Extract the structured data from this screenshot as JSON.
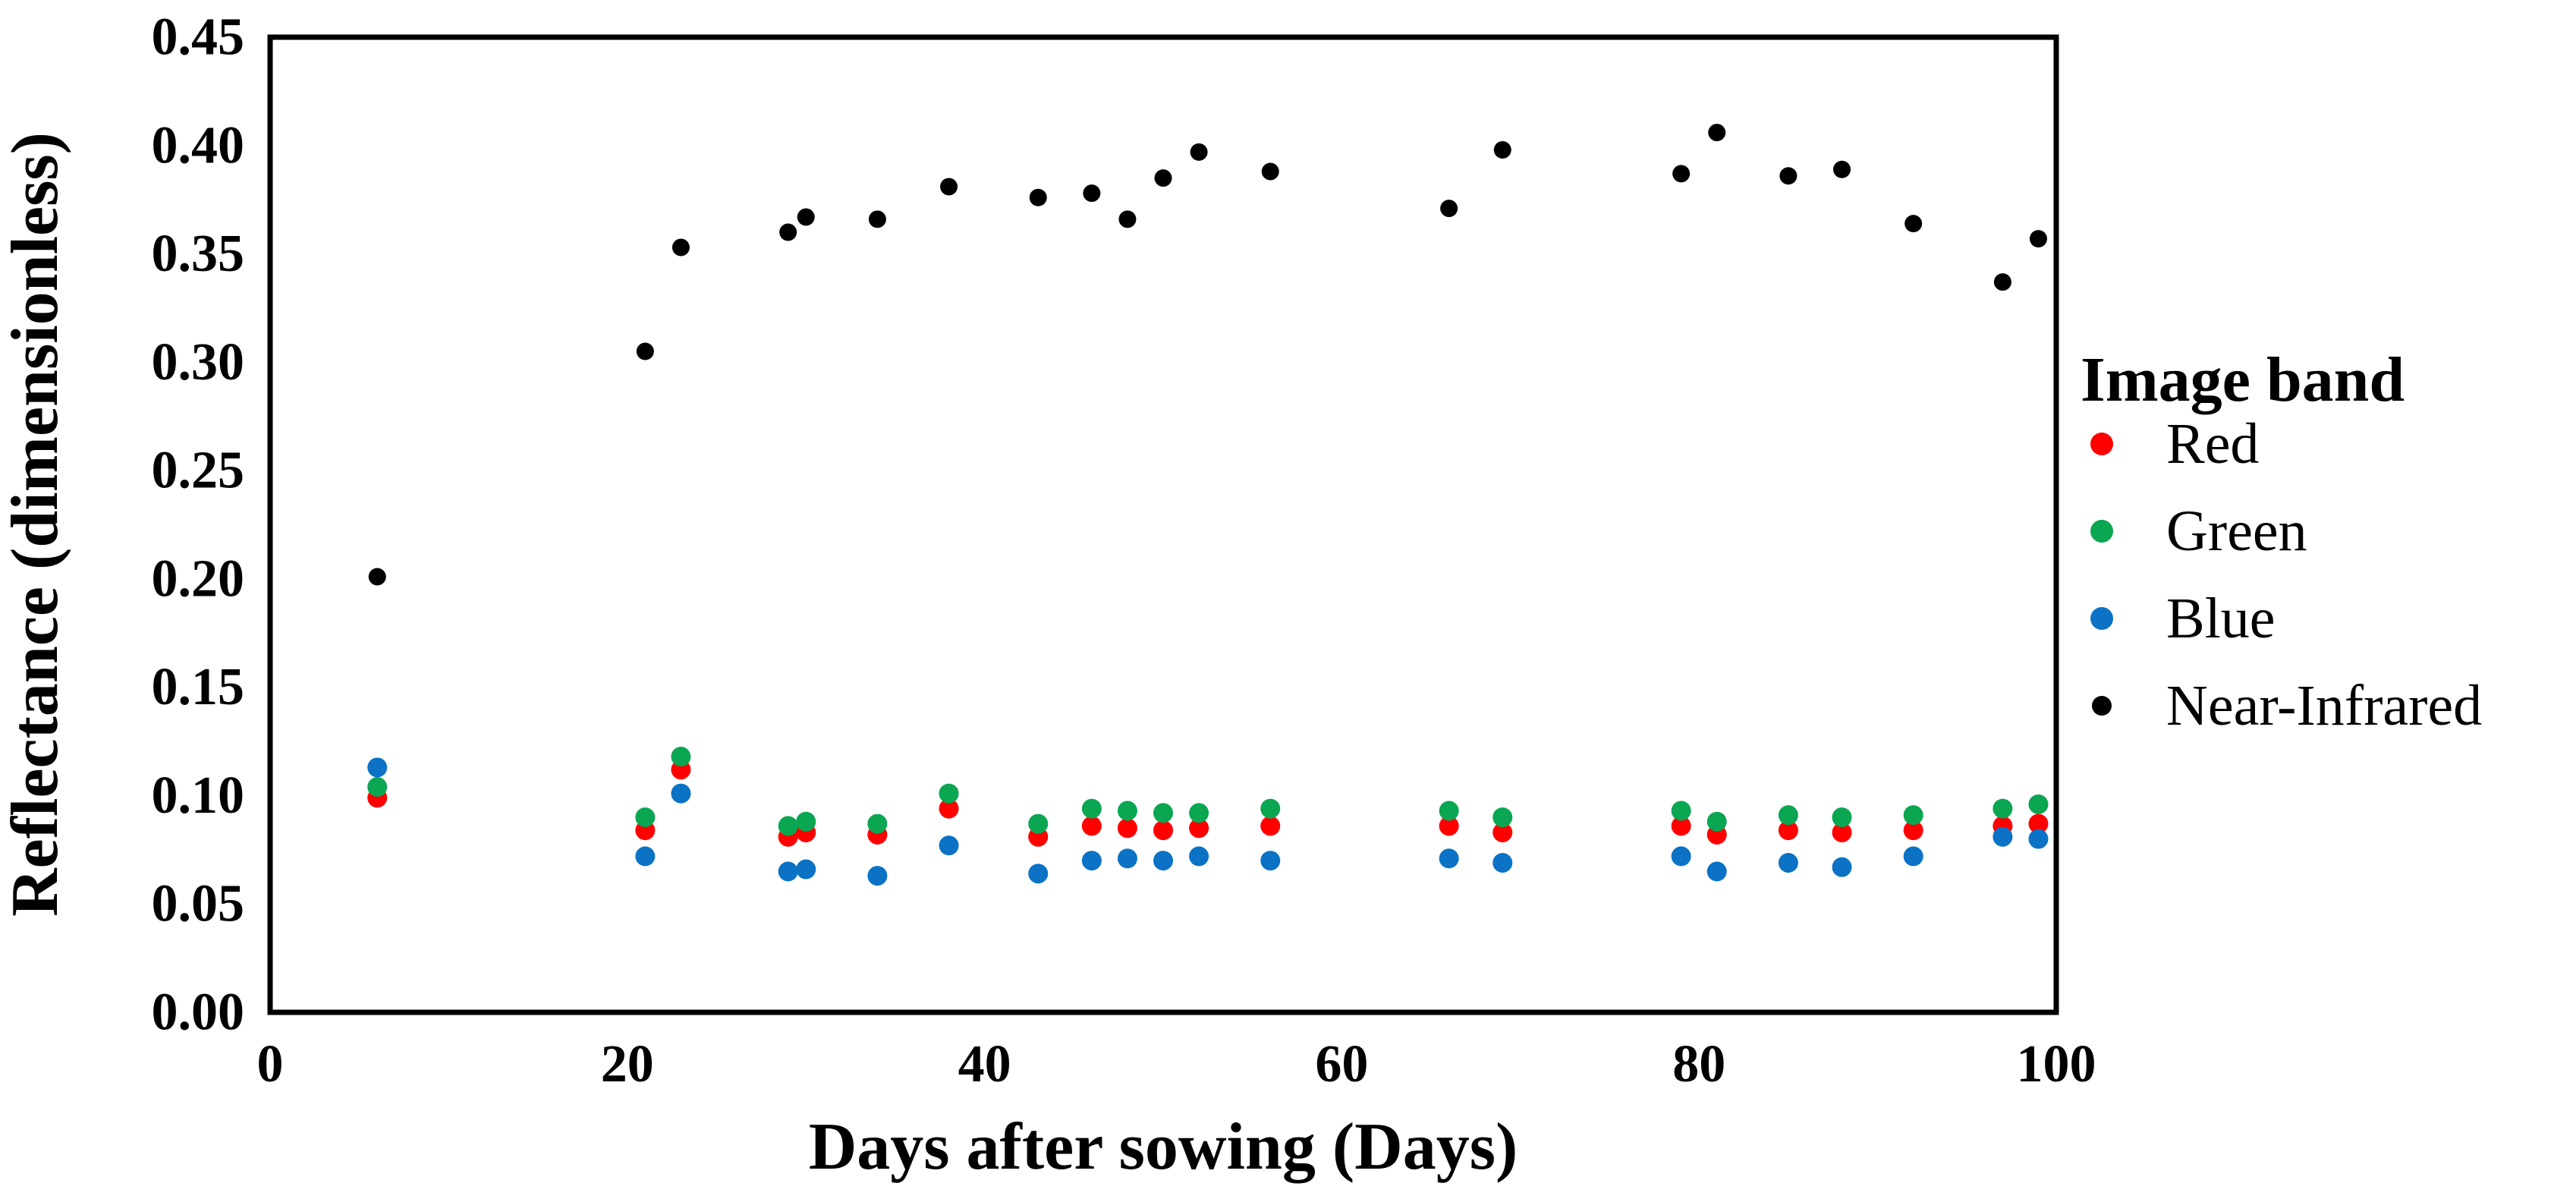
{
  "figure": {
    "background_color": "#ffffff",
    "plot_border_color": "#000000",
    "y_axis": {
      "title": "Reflectance (dimensionless)",
      "tick_labels": [
        "0.45",
        "0.40",
        "0.35",
        "0.30",
        "0.25",
        "0.20",
        "0.15",
        "0.10",
        "0.05",
        "0.00"
      ],
      "tick_values": [
        0.45,
        0.4,
        0.35,
        0.3,
        0.25,
        0.2,
        0.15,
        0.1,
        0.05,
        0.0
      ]
    },
    "x_axis": {
      "title": "Days after sowing (Days)",
      "tick_labels": [
        "0",
        "20",
        "40",
        "60",
        "80",
        "100"
      ],
      "tick_values": [
        0,
        20,
        40,
        60,
        80,
        100
      ]
    },
    "legend": {
      "title": "Image band",
      "items": [
        "Red",
        "Green",
        "Blue",
        "Near-Infrared"
      ]
    }
  },
  "chart_data": {
    "type": "scatter",
    "title": "",
    "xlabel": "Days after sowing (Days)",
    "ylabel": "Reflectance (dimensionless)",
    "xlim": [
      0,
      100
    ],
    "ylim": [
      0.0,
      0.45
    ],
    "grid": false,
    "legend_position": "right",
    "x": [
      6,
      21,
      23,
      29,
      30,
      34,
      38,
      43,
      46,
      48,
      50,
      52,
      56,
      66,
      69,
      79,
      81,
      85,
      88,
      92,
      97,
      99
    ],
    "series": [
      {
        "name": "Red",
        "color": "#fe0000",
        "marker_radius": 13,
        "values": [
          0.099,
          0.084,
          0.112,
          0.081,
          0.083,
          0.082,
          0.094,
          0.081,
          0.086,
          0.085,
          0.084,
          0.085,
          0.086,
          0.086,
          0.083,
          0.086,
          0.082,
          0.084,
          0.083,
          0.084,
          0.086,
          0.087
        ]
      },
      {
        "name": "Green",
        "color": "#0aa651",
        "marker_radius": 13,
        "values": [
          0.104,
          0.09,
          0.118,
          0.086,
          0.088,
          0.087,
          0.101,
          0.087,
          0.094,
          0.093,
          0.092,
          0.092,
          0.094,
          0.093,
          0.09,
          0.093,
          0.088,
          0.091,
          0.09,
          0.091,
          0.094,
          0.096
        ]
      },
      {
        "name": "Blue",
        "color": "#0b72c5",
        "marker_radius": 13,
        "values": [
          0.113,
          0.072,
          0.101,
          0.065,
          0.066,
          0.063,
          0.077,
          0.064,
          0.07,
          0.071,
          0.07,
          0.072,
          0.07,
          0.071,
          0.069,
          0.072,
          0.065,
          0.069,
          0.067,
          0.072,
          0.081,
          0.08
        ]
      },
      {
        "name": "Near-Infrared",
        "color": "#000000",
        "marker_radius": 11.5,
        "values": [
          0.201,
          0.305,
          0.353,
          0.36,
          0.367,
          0.366,
          0.381,
          0.376,
          0.378,
          0.366,
          0.385,
          0.397,
          0.388,
          0.371,
          0.398,
          0.387,
          0.406,
          0.386,
          0.389,
          0.364,
          0.337,
          0.357
        ]
      }
    ]
  }
}
